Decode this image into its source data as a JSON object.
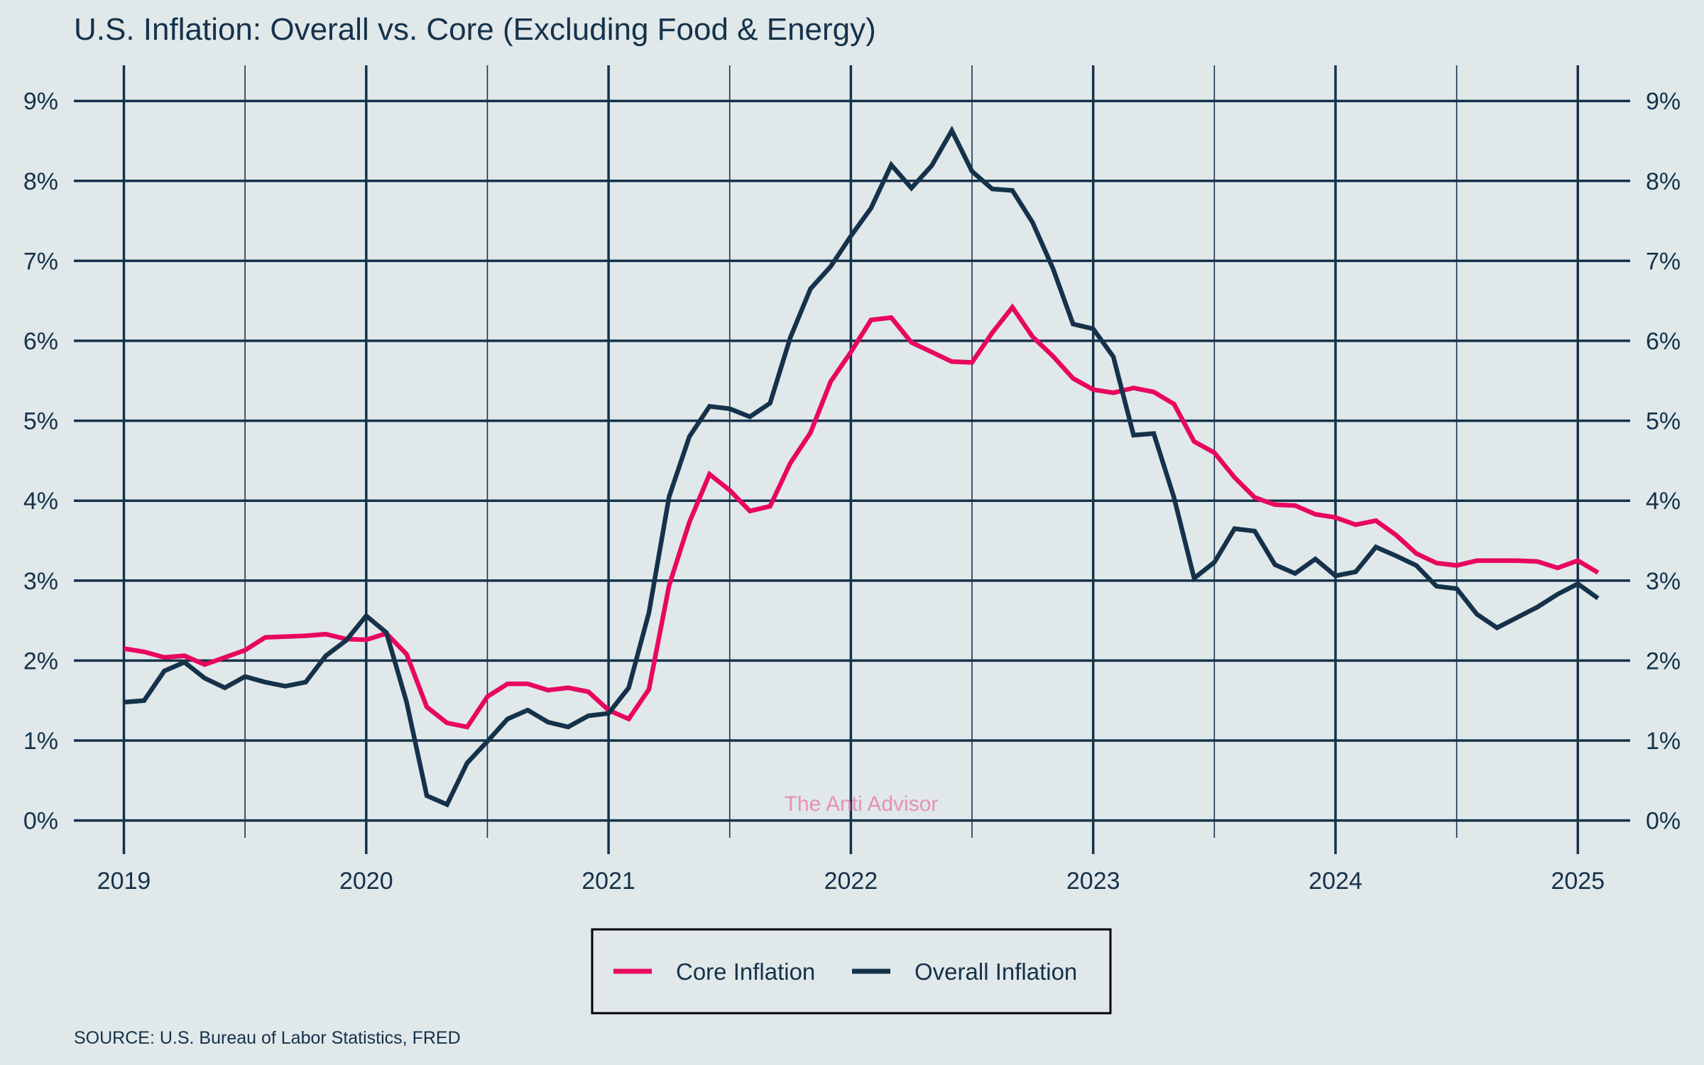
{
  "chart_data": {
    "type": "line",
    "title": "U.S. Inflation: Overall vs. Core (Excluding Food & Energy)",
    "xlabel": "",
    "ylabel": "",
    "x_start": "2019-01",
    "x_frequency": "monthly",
    "x_ticks": [
      "2019",
      "2020",
      "2021",
      "2022",
      "2023",
      "2024",
      "2025"
    ],
    "y_ticks": [
      "0%",
      "1%",
      "2%",
      "3%",
      "4%",
      "5%",
      "6%",
      "7%",
      "8%",
      "9%"
    ],
    "ylim": [
      -0.4,
      9.4
    ],
    "xlim": [
      2018.8,
      2025.3
    ],
    "grid": true,
    "legend_position": "bottom-center",
    "series": [
      {
        "name": "Core Inflation",
        "color": "#e8075f",
        "values": [
          2.15,
          2.11,
          2.04,
          2.06,
          1.95,
          2.04,
          2.13,
          2.29,
          2.3,
          2.31,
          2.33,
          2.27,
          2.26,
          2.34,
          2.08,
          1.42,
          1.22,
          1.17,
          1.55,
          1.71,
          1.71,
          1.63,
          1.66,
          1.61,
          1.38,
          1.27,
          1.64,
          2.94,
          3.73,
          4.33,
          4.13,
          3.87,
          3.93,
          4.47,
          4.85,
          5.49,
          5.86,
          6.26,
          6.29,
          5.98,
          5.86,
          5.74,
          5.73,
          6.1,
          6.42,
          6.05,
          5.81,
          5.53,
          5.39,
          5.35,
          5.41,
          5.36,
          5.21,
          4.74,
          4.6,
          4.29,
          4.04,
          3.95,
          3.94,
          3.83,
          3.79,
          3.7,
          3.75,
          3.57,
          3.34,
          3.22,
          3.19,
          3.25,
          3.25,
          3.25,
          3.24,
          3.16,
          3.25,
          3.1
        ]
      },
      {
        "name": "Overall Inflation",
        "color": "#15324a",
        "values": [
          1.48,
          1.5,
          1.87,
          1.98,
          1.78,
          1.66,
          1.8,
          1.73,
          1.68,
          1.73,
          2.06,
          2.25,
          2.56,
          2.35,
          1.48,
          0.31,
          0.2,
          0.72,
          0.99,
          1.27,
          1.38,
          1.23,
          1.17,
          1.31,
          1.34,
          1.66,
          2.6,
          4.05,
          4.8,
          5.18,
          5.15,
          5.05,
          5.22,
          6.04,
          6.65,
          6.93,
          7.31,
          7.66,
          8.2,
          7.91,
          8.19,
          8.63,
          8.12,
          7.9,
          7.88,
          7.48,
          6.91,
          6.21,
          6.15,
          5.8,
          4.82,
          4.84,
          4.04,
          3.03,
          3.23,
          3.65,
          3.62,
          3.2,
          3.09,
          3.27,
          3.06,
          3.11,
          3.42,
          3.31,
          3.19,
          2.93,
          2.9,
          2.58,
          2.41,
          2.54,
          2.67,
          2.83,
          2.96,
          2.78
        ]
      }
    ],
    "watermark": "The Anti Advisor",
    "source": "SOURCE: U.S. Bureau of Labor Statistics, FRED"
  }
}
